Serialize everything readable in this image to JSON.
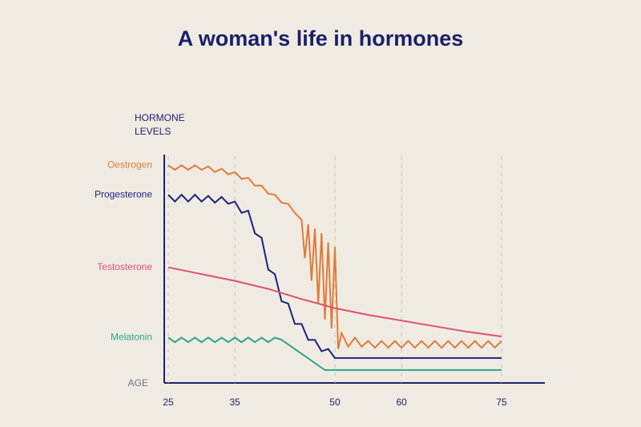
{
  "chart_data": {
    "type": "line",
    "title": "A woman's life in hormones",
    "y_label": [
      "HORMONE",
      "LEVELS"
    ],
    "x_label": "AGE",
    "xlim": [
      24.4,
      81.5
    ],
    "ylim": [
      0,
      100
    ],
    "xticks": [
      25,
      35,
      50,
      60,
      75
    ],
    "grid": true,
    "series": [
      {
        "name": "Oestrogen",
        "color": "#e07b3a",
        "x": [
          25,
          26,
          27,
          28,
          29,
          30,
          31,
          32,
          33,
          34,
          35,
          36,
          37,
          38,
          39,
          40,
          41,
          42,
          43,
          44,
          45,
          45.5,
          46,
          46.5,
          47,
          47.5,
          48,
          48.5,
          49,
          49.5,
          50,
          50.5,
          51,
          52,
          53,
          54,
          55,
          56,
          57,
          58,
          59,
          60,
          61,
          62,
          63,
          64,
          65,
          66,
          67,
          68,
          69,
          70,
          71,
          72,
          73,
          74,
          75
        ],
        "values": [
          96,
          94,
          96,
          94,
          96,
          94,
          95.5,
          93,
          94.5,
          92,
          93,
          90,
          90.5,
          87,
          87,
          83.5,
          83,
          79.5,
          79,
          75,
          72,
          55,
          70,
          45,
          68,
          35,
          66,
          28,
          62,
          24,
          60,
          15,
          22,
          16,
          20,
          16,
          18.5,
          15.5,
          18.5,
          15.5,
          18.5,
          15.5,
          18.5,
          15.5,
          18.5,
          15.5,
          18.5,
          15.5,
          18.5,
          15.5,
          18.5,
          15.5,
          18.5,
          15.5,
          18.5,
          15.5,
          18.5
        ]
      },
      {
        "name": "Progesterone",
        "color": "#1b2280",
        "x": [
          25,
          26,
          27,
          28,
          29,
          30,
          31,
          32,
          33,
          34,
          35,
          36,
          37,
          38,
          39,
          40,
          41,
          42,
          43,
          44,
          45,
          46,
          47,
          48,
          49,
          50,
          75
        ],
        "values": [
          83,
          80,
          83,
          80,
          83,
          80,
          82.5,
          79.5,
          82,
          79,
          80,
          75,
          76,
          66,
          64,
          50,
          48,
          36,
          35,
          26,
          26,
          19,
          19,
          14,
          15,
          11,
          11
        ]
      },
      {
        "name": "Testosterone",
        "color": "#e0506e",
        "x": [
          25,
          30,
          35,
          40,
          45,
          50,
          55,
          60,
          65,
          70,
          75
        ],
        "values": [
          51,
          48,
          45,
          41.5,
          37,
          33,
          30,
          27.5,
          25,
          22.5,
          20.5
        ]
      },
      {
        "name": "Melatonin",
        "color": "#2aa58a",
        "x": [
          25,
          26,
          27,
          28,
          29,
          30,
          31,
          32,
          33,
          34,
          35,
          36,
          37,
          38,
          39,
          40,
          41,
          42,
          48.5,
          75
        ],
        "values": [
          20,
          18,
          20,
          18,
          20,
          18,
          20,
          18,
          20,
          18,
          20,
          18,
          20,
          18,
          20,
          18,
          20,
          19,
          5.7,
          5.7
        ]
      }
    ]
  }
}
